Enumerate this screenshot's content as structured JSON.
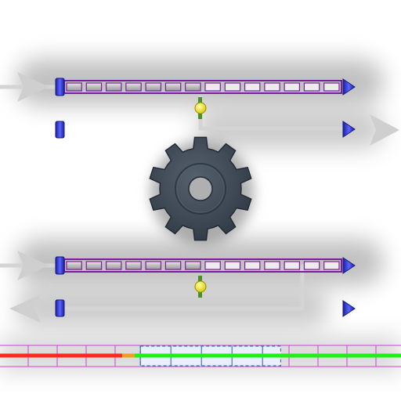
{
  "colors": {
    "background": "#ffffff",
    "shadow": "#9a9a9a",
    "path_arrow": "#cfcfcf",
    "conveyor_frame": "#7a1f9a",
    "conveyor_segment": "#c0c0c0",
    "endpoint": "#2f35c8",
    "gear": "#3c4754",
    "sensor": "#f3e625",
    "sensor_stem": "#4a8f2a",
    "progress_fail": "#ff2a1a",
    "progress_ok": "#22ef1a",
    "progress_grid": "#d040d0",
    "progress_marker": "#2d5fa8"
  },
  "icons": {
    "gear": "gear-icon",
    "sensor": "sensor-icon",
    "arrow": "arrow-icon",
    "endpoint": "endpoint-icon"
  },
  "level": {
    "conveyors": [
      {
        "name": "conveyor-upper",
        "segments": 14,
        "lit_segments": 7
      },
      {
        "name": "conveyor-lower",
        "segments": 14,
        "lit_segments": 7
      }
    ],
    "progress": {
      "fail_fraction": 0.32,
      "ok_fraction": 0.68,
      "highlight_start": 0.35,
      "highlight_end": 0.7
    }
  }
}
